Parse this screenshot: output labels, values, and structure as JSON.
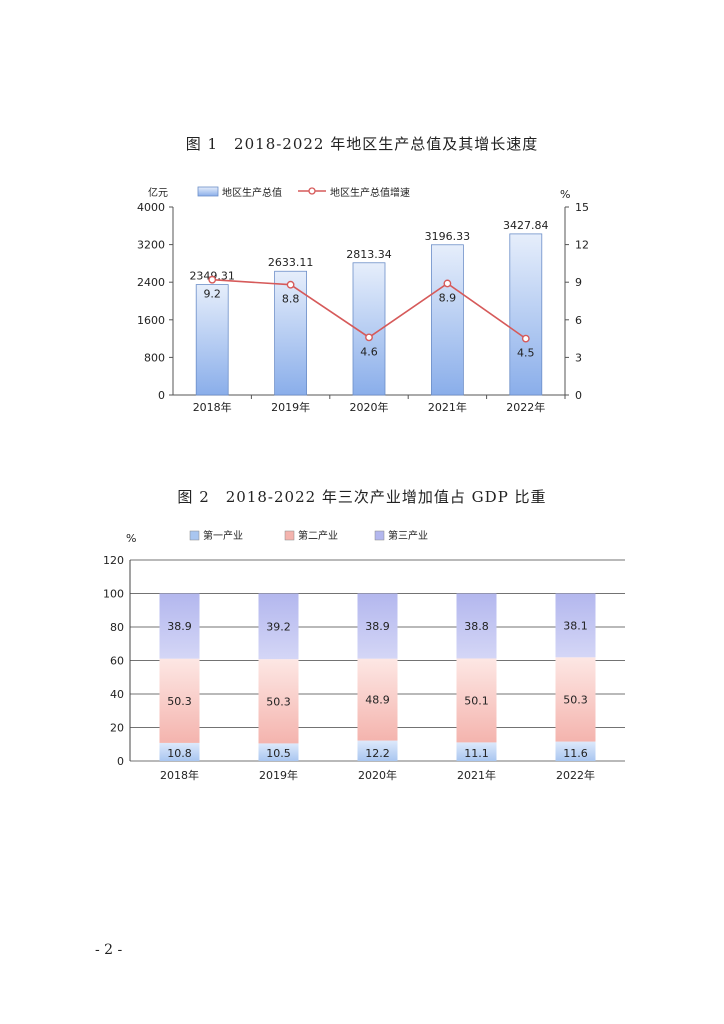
{
  "chart_data": [
    {
      "type": "bar",
      "title": "图 1　2018-2022 年地区生产总值及其增长速度",
      "categories": [
        "2018年",
        "2019年",
        "2020年",
        "2021年",
        "2022年"
      ],
      "left_axis": {
        "unit": "亿元",
        "ylim": [
          0,
          4000
        ],
        "ticks": [
          "0",
          "800",
          "1600",
          "2400",
          "3200",
          "4000"
        ]
      },
      "right_axis": {
        "unit": "%",
        "ylim": [
          0,
          15
        ],
        "ticks": [
          "0",
          "3",
          "6",
          "9",
          "12",
          "15"
        ]
      },
      "series": [
        {
          "name": "地区生产总值",
          "type": "bar",
          "axis": "left",
          "values": [
            2349.31,
            2633.11,
            2813.34,
            3196.33,
            3427.84
          ],
          "labels": [
            "2349.31",
            "2633.11",
            "2813.34",
            "3196.33",
            "3427.84"
          ]
        },
        {
          "name": "地区生产总值增速",
          "type": "line",
          "axis": "right",
          "values": [
            9.2,
            8.8,
            4.6,
            8.9,
            4.5
          ],
          "labels": [
            "9.2",
            "8.8",
            "4.6",
            "8.9",
            "4.5"
          ]
        }
      ],
      "legend": "top",
      "grid": false,
      "colors": {
        "bar_top": "#e6eefb",
        "bar_bottom": "#8aaeea",
        "bar_stroke": "#6c8ec8",
        "line": "#d65a5a"
      }
    },
    {
      "type": "bar",
      "stacked": true,
      "title": "图 2　2018-2022 年三次产业增加值占 GDP 比重",
      "categories": [
        "2018年",
        "2019年",
        "2020年",
        "2021年",
        "2022年"
      ],
      "y_axis": {
        "unit": "%",
        "ylim": [
          0,
          120
        ],
        "ticks": [
          "0",
          "20",
          "40",
          "60",
          "80",
          "100",
          "120"
        ]
      },
      "series": [
        {
          "name": "第一产业",
          "values": [
            10.8,
            10.5,
            12.2,
            11.1,
            11.6
          ],
          "labels": [
            "10.8",
            "10.5",
            "12.2",
            "11.1",
            "11.6"
          ]
        },
        {
          "name": "第二产业",
          "values": [
            50.3,
            50.3,
            48.9,
            50.1,
            50.3
          ],
          "labels": [
            "50.3",
            "50.3",
            "48.9",
            "50.1",
            "50.3"
          ]
        },
        {
          "name": "第三产业",
          "values": [
            38.9,
            39.2,
            38.9,
            38.8,
            38.1
          ],
          "labels": [
            "38.9",
            "39.2",
            "38.9",
            "38.8",
            "38.1"
          ]
        }
      ],
      "legend": "top",
      "grid": true,
      "colors": {
        "primary": "#a9c6f0",
        "secondary": "#f4b4ae",
        "tertiary": "#b3b7ee"
      }
    }
  ],
  "page_number": "- 2 -"
}
